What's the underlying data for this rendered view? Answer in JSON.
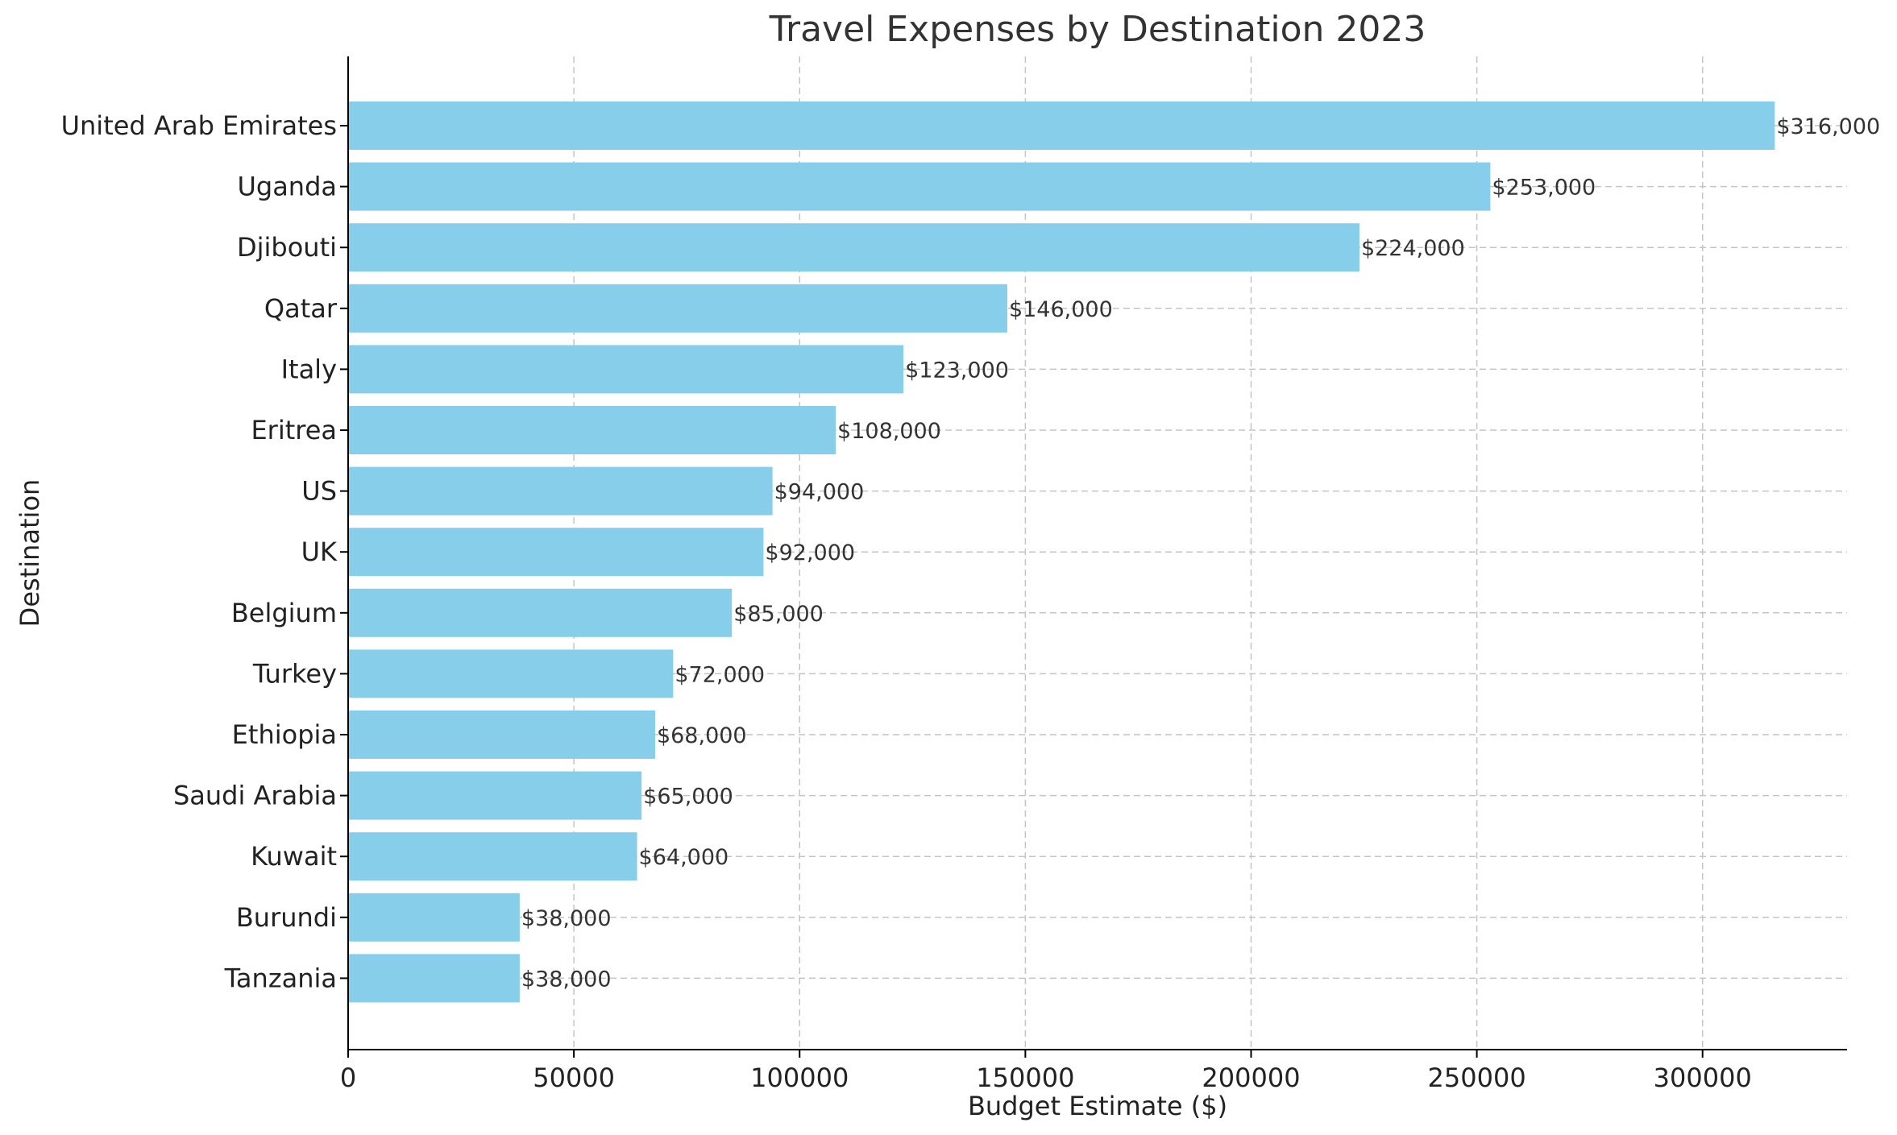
{
  "chart_data": {
    "type": "bar",
    "orientation": "horizontal",
    "title": "Travel Expenses by Destination 2023",
    "xlabel": "Budget Estimate ($)",
    "ylabel": "Destination",
    "categories": [
      "United Arab Emirates",
      "Uganda",
      "Djibouti",
      "Qatar",
      "Italy",
      "Eritrea",
      "US",
      "UK",
      "Belgium",
      "Turkey",
      "Ethiopia",
      "Saudi Arabia",
      "Kuwait",
      "Burundi",
      "Tanzania"
    ],
    "values": [
      316000,
      253000,
      224000,
      146000,
      123000,
      108000,
      94000,
      92000,
      85000,
      72000,
      68000,
      65000,
      64000,
      38000,
      38000
    ],
    "data_labels": [
      "$316,000",
      "$253,000",
      "$224,000",
      "$146,000",
      "$123,000",
      "$108,000",
      "$94,000",
      "$92,000",
      "$85,000",
      "$72,000",
      "$68,000",
      "$65,000",
      "$64,000",
      "$38,000",
      "$38,000"
    ],
    "xticks": [
      0,
      50000,
      100000,
      150000,
      200000,
      250000,
      300000
    ],
    "xtick_labels": [
      "0",
      "50000",
      "100000",
      "150000",
      "200000",
      "250000",
      "300000"
    ],
    "xlim": [
      0,
      332000
    ],
    "grid": true,
    "bar_color": "#87ceeb"
  }
}
